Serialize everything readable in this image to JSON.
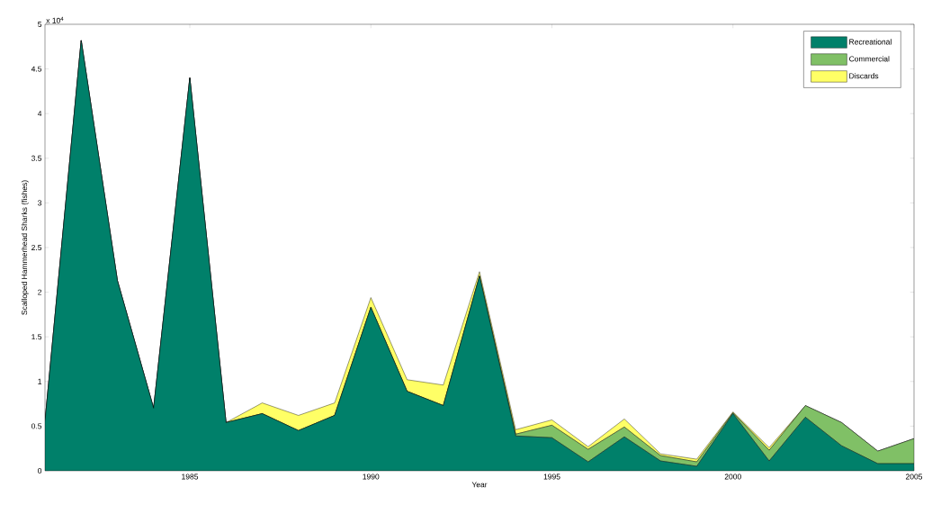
{
  "chart_data": {
    "type": "area",
    "stacked": true,
    "xlabel": "Year",
    "ylabel": "Scalloped Hammerhead Sharks (fishes)",
    "annotations": [
      "x 10$^{4}$"
    ],
    "x": [
      1981,
      1982,
      1983,
      1984,
      1985,
      1986,
      1987,
      1988,
      1989,
      1990,
      1991,
      1992,
      1993,
      1994,
      1995,
      1996,
      1997,
      1998,
      1999,
      2000,
      2001,
      2002,
      2003,
      2004,
      2005
    ],
    "series": [
      {
        "name": "Recreational",
        "color": "#00806a",
        "values": [
          0.55,
          4.82,
          2.13,
          0.7,
          4.4,
          0.54,
          0.64,
          0.45,
          0.62,
          1.83,
          0.89,
          0.73,
          2.18,
          0.39,
          0.37,
          0.1,
          0.38,
          0.11,
          0.05,
          0.64,
          0.11,
          0.6,
          0.28,
          0.08,
          0.08
        ]
      },
      {
        "name": "Commercial",
        "color": "#80c066",
        "values": [
          0,
          0,
          0,
          0,
          0,
          0,
          0,
          0,
          0,
          0,
          0,
          0,
          0,
          0.02,
          0.14,
          0.14,
          0.11,
          0.06,
          0.05,
          0.01,
          0.12,
          0.13,
          0.26,
          0.14,
          0.28
        ]
      },
      {
        "name": "Discards",
        "color": "#ffff66",
        "values": [
          0,
          0,
          0,
          0,
          0,
          0,
          0.12,
          0.17,
          0.14,
          0.11,
          0.13,
          0.23,
          0.05,
          0.05,
          0.06,
          0.03,
          0.09,
          0.02,
          0.03,
          0.01,
          0.03,
          0,
          0,
          0,
          0
        ]
      }
    ],
    "xlim": [
      1981,
      2005
    ],
    "xticks": [
      1985,
      1990,
      1995,
      2000,
      2005
    ],
    "ylim": [
      0,
      5
    ],
    "yticks": [
      0,
      0.5,
      1,
      1.5,
      2,
      2.5,
      3,
      3.5,
      4,
      4.5,
      5
    ],
    "legend": "top right",
    "grid": false
  }
}
